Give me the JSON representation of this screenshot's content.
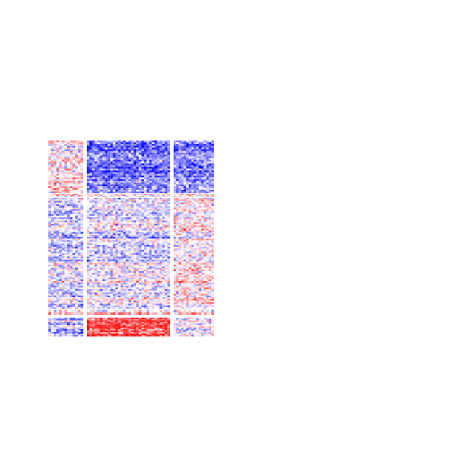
{
  "chart_data": {
    "type": "heatmap",
    "title": "",
    "xlabel": "",
    "ylabel": "",
    "color_scale": {
      "low": "#0000ff",
      "mid": "#ffffff",
      "high": "#ff0000",
      "range": [
        -1,
        1
      ]
    },
    "row_clusters": [
      {
        "rows": 30
      },
      {
        "rows": 3
      },
      {
        "rows": 68
      },
      {
        "rows": 2
      },
      {
        "rows": 13
      }
    ],
    "column_clusters": [
      {
        "columns": 13
      },
      {
        "columns": 32
      },
      {
        "columns": 16
      }
    ],
    "cluster_mean_values": [
      [
        0.1,
        -0.55,
        -0.5
      ],
      [
        0.05,
        0.0,
        0.05
      ],
      [
        -0.15,
        -0.1,
        0.1
      ],
      [
        0.05,
        0.05,
        0.0
      ],
      [
        -0.2,
        0.75,
        0.05
      ]
    ],
    "legend": "none",
    "grid": false
  }
}
